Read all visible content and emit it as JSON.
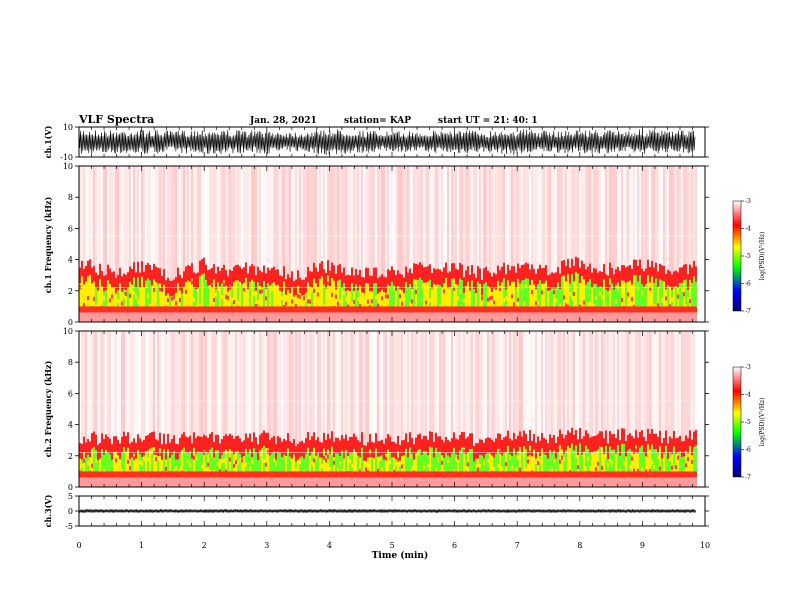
{
  "header": {
    "title": "VLF Spectra",
    "date": "Jan. 28, 2021",
    "station": "station= KAP",
    "start": "start  UT =   21: 40: 1"
  },
  "colors": {
    "waveform": "#000000",
    "spectrogram_scale": [
      "#000070",
      "#0000ff",
      "#00ff00",
      "#ffff00",
      "#ff0000",
      "#ffffff"
    ]
  },
  "chart_data": [
    {
      "type": "line",
      "panel": "ch1-waveform",
      "ylabel": "ch.1(V)",
      "ylim": [
        -10,
        10
      ],
      "yticks": [
        "10",
        "-10"
      ],
      "xlim": [
        0,
        10
      ],
      "x": [
        0,
        0.5,
        1,
        1.5,
        2,
        2.5,
        3,
        3.5,
        4,
        4.5,
        5,
        5.5,
        6,
        6.5,
        7,
        7.5,
        8,
        8.5,
        9,
        9.5,
        9.85
      ],
      "envelope_low": [
        -9,
        -8,
        -8.5,
        -7,
        -9,
        -7.5,
        -8,
        -6.5,
        -9,
        -7.5,
        -6.5,
        -7,
        -8,
        -7,
        -9,
        -7,
        -8,
        -7.5,
        -8,
        -7,
        -8
      ],
      "envelope_high": [
        9,
        8,
        8.5,
        7.5,
        9,
        8,
        8,
        7,
        9,
        8,
        7,
        7.5,
        8.5,
        7.5,
        9,
        7.5,
        8.5,
        8,
        8.5,
        7.5,
        8.5
      ]
    },
    {
      "type": "heatmap",
      "panel": "ch1-spectrogram",
      "ylabel": "ch.1  Frequency  (kHz)",
      "ylim": [
        0,
        10
      ],
      "yticks": [
        "0",
        "2",
        "4",
        "6",
        "8",
        "10"
      ],
      "xlim": [
        0,
        10
      ],
      "data_end_min": 9.85,
      "colorbar": {
        "label": "log(PSD)(V²/Hz)",
        "range": [
          -7,
          -3
        ],
        "ticks": [
          "-3",
          "-4",
          "-5",
          "-6",
          "-7"
        ]
      },
      "band_top_khz": [
        3.8,
        3.2,
        3.6,
        3.0,
        3.7,
        3.3,
        3.5,
        3.0,
        3.6,
        3.2,
        3.1,
        3.4,
        3.5,
        3.1,
        3.6,
        3.2,
        3.8,
        3.3,
        3.7,
        3.4,
        3.5
      ],
      "green_intensity": [
        0.3,
        0.2,
        0.3,
        0.4,
        0.5,
        0.3,
        0.3,
        0.4,
        0.3,
        0.4,
        0.4,
        0.5,
        0.5,
        0.6,
        0.6,
        0.5,
        0.6,
        0.6,
        0.7,
        0.6,
        0.7
      ]
    },
    {
      "type": "heatmap",
      "panel": "ch2-spectrogram",
      "ylabel": "ch.2  Frequency  (kHz)",
      "ylim": [
        0,
        10
      ],
      "yticks": [
        "0",
        "2",
        "4",
        "6",
        "8",
        "10"
      ],
      "xlim": [
        0,
        10
      ],
      "data_end_min": 9.85,
      "colorbar": {
        "label": "log(PSD)(V²/Hz)",
        "range": [
          -7,
          -3
        ],
        "ticks": [
          "-3",
          "-4",
          "-5",
          "-6",
          "-7"
        ]
      },
      "band_top_khz": [
        3.2,
        3.0,
        3.3,
        3.0,
        3.4,
        3.1,
        3.2,
        3.0,
        3.3,
        3.1,
        3.0,
        3.2,
        3.3,
        3.0,
        3.4,
        3.1,
        3.5,
        3.2,
        3.4,
        3.2,
        3.3
      ],
      "green_intensity": [
        0.5,
        0.5,
        0.6,
        0.6,
        0.7,
        0.5,
        0.6,
        0.6,
        0.6,
        0.6,
        0.6,
        0.7,
        0.7,
        0.7,
        0.7,
        0.6,
        0.7,
        0.7,
        0.8,
        0.7,
        0.7
      ]
    },
    {
      "type": "line",
      "panel": "ch3-waveform",
      "ylabel": "ch.3(V)",
      "ylim": [
        -5,
        5
      ],
      "yticks": [
        "5",
        "0",
        "-5"
      ],
      "xlim": [
        0,
        10
      ],
      "x": [
        0,
        1,
        2,
        3,
        4,
        5,
        6,
        7,
        8,
        9,
        9.85
      ],
      "envelope_low": [
        -0.6,
        -0.6,
        -0.6,
        -0.6,
        -0.6,
        -0.6,
        -0.6,
        -0.6,
        -0.6,
        -0.6,
        -0.6
      ],
      "envelope_high": [
        0.6,
        0.6,
        0.6,
        0.6,
        0.6,
        0.6,
        0.6,
        0.6,
        0.6,
        0.6,
        0.6
      ]
    }
  ],
  "xaxis": {
    "label": "Time  (min)",
    "ticks": [
      "0",
      "1",
      "2",
      "3",
      "4",
      "5",
      "6",
      "7",
      "8",
      "9",
      "10"
    ]
  }
}
